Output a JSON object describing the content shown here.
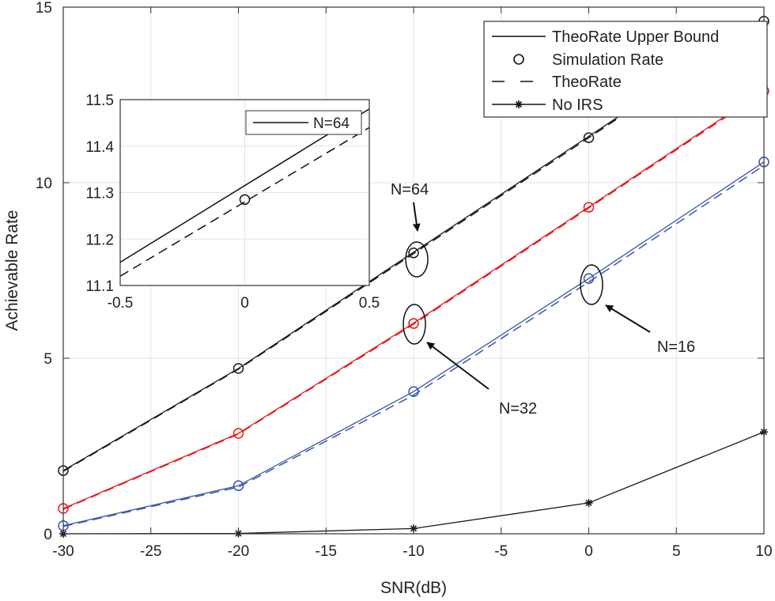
{
  "chart_data": {
    "type": "line",
    "title": "",
    "xlabel": "SNR(dB)",
    "ylabel": "Achievable Rate",
    "xlim": [
      -30,
      10
    ],
    "ylim": [
      0,
      15
    ],
    "xticks": [
      -30,
      -25,
      -20,
      -15,
      -10,
      -5,
      0,
      5,
      10
    ],
    "yticks": [
      0,
      5,
      10,
      15
    ],
    "grid": true,
    "x": [
      -30,
      -20,
      -10,
      0,
      10
    ],
    "series": [
      {
        "name": "N=64 TheoRate Upper Bound",
        "style": "solid",
        "color": "#1a1a1a",
        "values": [
          1.8,
          4.71,
          8.02,
          11.32,
          14.62
        ]
      },
      {
        "name": "N=64 Simulation Rate",
        "style": "marker-circle",
        "color": "#1a1a1a",
        "values": [
          1.8,
          4.71,
          8.0,
          11.28,
          14.6
        ]
      },
      {
        "name": "N=64 TheoRate",
        "style": "dashed",
        "color": "#1a1a1a",
        "values": [
          1.78,
          4.69,
          7.98,
          11.28,
          14.58
        ]
      },
      {
        "name": "N=32 TheoRate Upper Bound",
        "style": "solid",
        "color": "#e8191c",
        "values": [
          0.72,
          2.86,
          6.0,
          9.31,
          12.63
        ]
      },
      {
        "name": "N=32 Simulation Rate",
        "style": "marker-circle",
        "color": "#e8191c",
        "values": [
          0.72,
          2.86,
          5.99,
          9.3,
          12.61
        ]
      },
      {
        "name": "N=32 TheoRate",
        "style": "dashed",
        "color": "#e8191c",
        "values": [
          0.7,
          2.84,
          5.97,
          9.28,
          12.59
        ]
      },
      {
        "name": "N=16 TheoRate Upper Bound",
        "style": "solid",
        "color": "#3a55a8",
        "values": [
          0.23,
          1.37,
          4.05,
          7.27,
          10.59
        ]
      },
      {
        "name": "N=16 Simulation Rate",
        "style": "marker-circle",
        "color": "#3a55a8",
        "values": [
          0.23,
          1.37,
          4.05,
          7.27,
          10.59
        ]
      },
      {
        "name": "N=16 TheoRate",
        "style": "dashed",
        "color": "#3a55a8",
        "values": [
          0.21,
          1.33,
          3.95,
          7.17,
          10.49
        ]
      },
      {
        "name": "No IRS",
        "style": "solid-star",
        "color": "#1a1a1a",
        "values": [
          0.0,
          0.01,
          0.15,
          0.88,
          2.9
        ]
      }
    ],
    "legend": {
      "placement": "top-right",
      "entries": [
        "TheoRate Upper Bound",
        "Simulation Rate",
        "TheoRate",
        "No IRS"
      ]
    },
    "annotations": [
      "N=64",
      "N=32",
      "N=16"
    ],
    "inset": {
      "xlim": [
        -0.5,
        0.5
      ],
      "ylim": [
        11.1,
        11.5
      ],
      "xticks": [
        -0.5,
        0,
        0.5
      ],
      "yticks": [
        11.1,
        11.2,
        11.3,
        11.4,
        11.5
      ],
      "legend": "N=64",
      "solid": {
        "x": [
          -0.5,
          0.5
        ],
        "values": [
          11.15,
          11.48
        ]
      },
      "dashed": {
        "x": [
          -0.5,
          0.5
        ],
        "values": [
          11.12,
          11.44
        ]
      },
      "marker": {
        "x": 0,
        "value": 11.285
      }
    }
  }
}
